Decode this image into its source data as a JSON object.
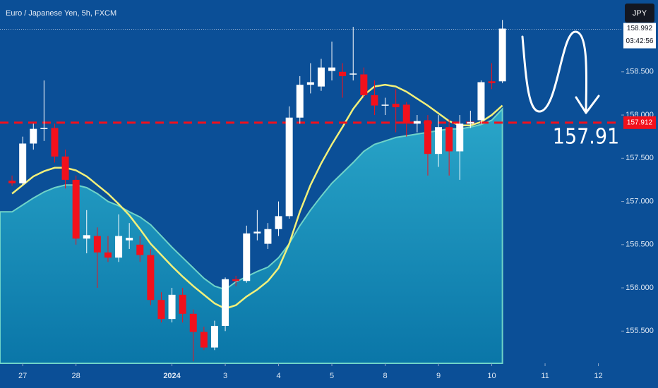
{
  "chart_data": {
    "type": "candlestick",
    "title": "Euro / Japanese Yen, 5h, FXCM",
    "currency": "JPY",
    "x": [
      0,
      1,
      2,
      3,
      4,
      5,
      6,
      7,
      8,
      9,
      10,
      11,
      12,
      13,
      14,
      15,
      16,
      17,
      18,
      19,
      20,
      21,
      22,
      23,
      24,
      25,
      26,
      27,
      28,
      29,
      30,
      31,
      32,
      33,
      34,
      35,
      36,
      37,
      38,
      39,
      40,
      41,
      42,
      43,
      44,
      45,
      46
    ],
    "open": [
      157.24,
      157.21,
      157.67,
      157.84,
      157.85,
      157.52,
      157.25,
      156.57,
      156.6,
      156.41,
      156.35,
      156.55,
      156.5,
      156.38,
      155.86,
      155.64,
      155.92,
      155.7,
      155.49,
      155.31,
      155.56,
      156.1,
      156.08,
      156.63,
      156.51,
      156.68,
      156.83,
      157.97,
      158.35,
      158.33,
      158.51,
      158.5,
      158.47,
      158.47,
      158.23,
      158.11,
      158.13,
      158.12,
      157.9,
      157.94,
      157.55,
      157.86,
      157.58,
      157.9,
      157.94,
      158.39,
      158.39
    ],
    "high": [
      157.3,
      157.75,
      157.9,
      158.4,
      157.9,
      157.6,
      157.3,
      156.9,
      156.7,
      156.6,
      156.85,
      156.75,
      156.6,
      156.45,
      155.95,
      156.0,
      156.0,
      155.75,
      155.55,
      155.62,
      156.12,
      156.14,
      156.72,
      156.9,
      156.75,
      157.0,
      158.1,
      158.45,
      158.6,
      158.65,
      158.85,
      158.6,
      159.02,
      158.55,
      158.4,
      158.2,
      158.3,
      158.15,
      158.0,
      158.0,
      158.0,
      157.95,
      158.0,
      158.05,
      158.4,
      158.6,
      159.1
    ],
    "low": [
      157.18,
      157.19,
      157.6,
      157.7,
      157.45,
      157.15,
      156.5,
      156.4,
      156.0,
      156.3,
      156.3,
      156.45,
      156.3,
      155.8,
      155.6,
      155.6,
      155.6,
      155.15,
      155.28,
      155.28,
      155.5,
      156.02,
      156.06,
      156.55,
      156.45,
      156.6,
      156.8,
      157.9,
      158.25,
      158.28,
      158.4,
      158.2,
      158.4,
      158.2,
      158.0,
      158.0,
      157.8,
      157.75,
      157.8,
      157.3,
      157.4,
      157.3,
      157.25,
      157.85,
      157.9,
      158.3,
      158.37
    ],
    "close": [
      157.21,
      157.67,
      157.84,
      157.85,
      157.52,
      157.25,
      156.57,
      156.61,
      156.41,
      156.35,
      156.6,
      156.58,
      156.38,
      155.86,
      155.64,
      155.92,
      155.7,
      155.49,
      155.31,
      155.56,
      156.1,
      156.08,
      156.63,
      156.65,
      156.68,
      156.83,
      157.97,
      158.35,
      158.38,
      158.55,
      158.55,
      158.45,
      158.48,
      158.23,
      158.11,
      158.12,
      158.09,
      157.9,
      157.93,
      157.55,
      157.86,
      157.58,
      157.9,
      157.92,
      158.38,
      158.37,
      159.0
    ],
    "up_color": "#ffffff",
    "down_color": "#f2111c",
    "overlays": [
      {
        "kind": "area",
        "color": "#0f87b8",
        "values": [
          156.88,
          156.96,
          157.04,
          157.11,
          157.16,
          157.19,
          157.19,
          157.16,
          157.09,
          157.0,
          156.95,
          156.88,
          156.82,
          156.73,
          156.6,
          156.47,
          156.35,
          156.23,
          156.11,
          156.02,
          155.98,
          156.07,
          156.13,
          156.19,
          156.24,
          156.35,
          156.51,
          156.72,
          156.9,
          157.06,
          157.21,
          157.33,
          157.45,
          157.58,
          157.66,
          157.7,
          157.74,
          157.76,
          157.78,
          157.8,
          157.82,
          157.84,
          157.84,
          157.86,
          157.89,
          157.94,
          158.07
        ]
      },
      {
        "kind": "line",
        "color": "#f2f07a",
        "values": [
          157.09,
          157.19,
          157.29,
          157.35,
          157.39,
          157.39,
          157.36,
          157.29,
          157.19,
          157.09,
          156.97,
          156.84,
          156.68,
          156.51,
          156.38,
          156.25,
          156.13,
          156.02,
          155.92,
          155.82,
          155.76,
          155.8,
          155.9,
          155.98,
          156.08,
          156.23,
          156.51,
          156.88,
          157.19,
          157.44,
          157.66,
          157.86,
          158.07,
          158.23,
          158.33,
          158.35,
          158.33,
          158.27,
          158.19,
          158.11,
          158.02,
          157.93,
          157.88,
          157.88,
          157.92,
          158.0,
          158.11
        ]
      }
    ],
    "xlim": [
      -1.13,
      57.15
    ],
    "xticks": [
      {
        "value": 1,
        "label": "27"
      },
      {
        "value": 6,
        "label": "28"
      },
      {
        "value": 15,
        "label": "2024"
      },
      {
        "value": 20,
        "label": "3"
      },
      {
        "value": 25,
        "label": "4"
      },
      {
        "value": 30,
        "label": "5"
      },
      {
        "value": 35,
        "label": "8"
      },
      {
        "value": 40,
        "label": "9"
      },
      {
        "value": 45,
        "label": "10"
      },
      {
        "value": 50,
        "label": "11"
      },
      {
        "value": 55,
        "label": "12"
      }
    ],
    "ylim": [
      155.127,
      159.331
    ],
    "yticks": [
      {
        "value": 155.5,
        "label": "155.500"
      },
      {
        "value": 156,
        "label": "156.000"
      },
      {
        "value": 156.5,
        "label": "156.500"
      },
      {
        "value": 157,
        "label": "157.000"
      },
      {
        "value": 157.5,
        "label": "157.500"
      },
      {
        "value": 158,
        "label": "158.000"
      },
      {
        "value": 158.5,
        "label": "158.500"
      }
    ],
    "last_price": 158.992,
    "countdown": "03:42:56",
    "level": {
      "value": 157.912,
      "color": "#f2111c"
    },
    "annotation": "157.91"
  }
}
